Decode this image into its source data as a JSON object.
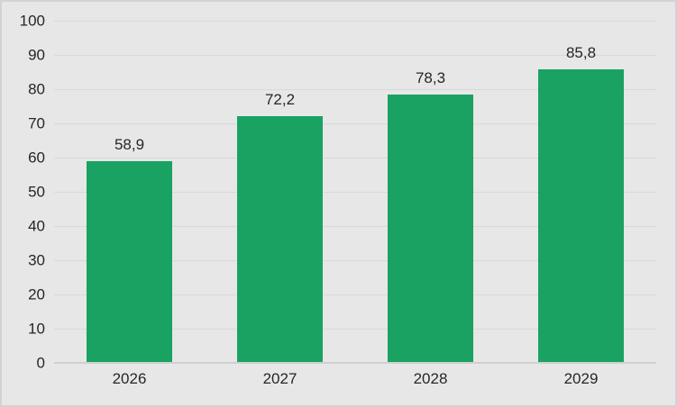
{
  "chart_data": {
    "type": "bar",
    "categories": [
      "2026",
      "2027",
      "2028",
      "2029"
    ],
    "values": [
      58.9,
      72.2,
      78.3,
      85.8
    ],
    "value_labels": [
      "58,9",
      "72,2",
      "78,3",
      "85,8"
    ],
    "title": "",
    "xlabel": "",
    "ylabel": "",
    "ylim": [
      0,
      100
    ],
    "ytick_step": 10,
    "ytick_labels": [
      "0",
      "10",
      "20",
      "30",
      "40",
      "50",
      "60",
      "70",
      "80",
      "90",
      "100"
    ],
    "grid": true,
    "legend": false,
    "colors": {
      "bar": "#1aa263",
      "background": "#e7e7e7",
      "frame_border": "#d2d2d2",
      "gridline": "#d9d9d9",
      "axis_line": "#cfcfcf",
      "text": "#262626"
    }
  }
}
